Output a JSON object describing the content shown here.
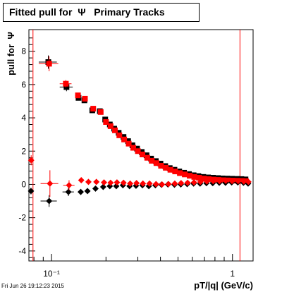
{
  "title": "Fitted pull for  Ψ   Primary Tracks",
  "timestamp": "Fri Jun 26 19:12:23 2015",
  "chart_data": {
    "type": "scatter",
    "xlabel": "pT/|q| (GeV/c)",
    "ylabel": "pull for  Ψ",
    "xscale": "log",
    "xlim": [
      0.075,
      1.3
    ],
    "ylim": [
      -4.6,
      9.3
    ],
    "yticks": [
      -4,
      -2,
      0,
      2,
      4,
      6,
      8
    ],
    "xtick_labels": [
      {
        "x": 0.1,
        "label": "10⁻¹"
      },
      {
        "x": 1,
        "label": "1"
      }
    ],
    "vertical_lines": [
      0.079,
      1.1
    ],
    "colors": {
      "black": "#000000",
      "red": "#ff0000",
      "lines": "#ff0000"
    },
    "series": [
      {
        "marker": "square",
        "color": "#000000",
        "points": [
          {
            "x": 0.096,
            "y": 7.35,
            "xerr": 0.011,
            "yerr": 0.4
          },
          {
            "x": 0.121,
            "y": 5.85,
            "xerr": 0.01,
            "yerr": 0.25
          },
          {
            "x": 0.141,
            "y": 5.2,
            "xerr": 0.005,
            "yerr": 0.12
          },
          {
            "x": 0.152,
            "y": 5.05,
            "xerr": 0.004,
            "yerr": 0.1
          },
          {
            "x": 0.168,
            "y": 4.45,
            "xerr": 0.004
          },
          {
            "x": 0.185,
            "y": 4.4
          },
          {
            "x": 0.198,
            "y": 3.9
          },
          {
            "x": 0.21,
            "y": 3.6
          },
          {
            "x": 0.222,
            "y": 3.35
          },
          {
            "x": 0.235,
            "y": 3.1
          },
          {
            "x": 0.25,
            "y": 2.85
          },
          {
            "x": 0.265,
            "y": 2.6
          },
          {
            "x": 0.28,
            "y": 2.35
          },
          {
            "x": 0.297,
            "y": 2.15
          },
          {
            "x": 0.315,
            "y": 1.95
          },
          {
            "x": 0.335,
            "y": 1.75
          },
          {
            "x": 0.355,
            "y": 1.55
          },
          {
            "x": 0.377,
            "y": 1.4
          },
          {
            "x": 0.4,
            "y": 1.25
          },
          {
            "x": 0.425,
            "y": 1.1
          },
          {
            "x": 0.45,
            "y": 0.98
          },
          {
            "x": 0.478,
            "y": 0.88
          },
          {
            "x": 0.508,
            "y": 0.78
          },
          {
            "x": 0.54,
            "y": 0.7
          },
          {
            "x": 0.575,
            "y": 0.62
          },
          {
            "x": 0.61,
            "y": 0.55
          },
          {
            "x": 0.648,
            "y": 0.5
          },
          {
            "x": 0.69,
            "y": 0.45
          },
          {
            "x": 0.733,
            "y": 0.42
          },
          {
            "x": 0.78,
            "y": 0.4
          },
          {
            "x": 0.83,
            "y": 0.38
          },
          {
            "x": 0.88,
            "y": 0.36
          },
          {
            "x": 0.935,
            "y": 0.35
          },
          {
            "x": 0.995,
            "y": 0.34
          },
          {
            "x": 1.06,
            "y": 0.33
          },
          {
            "x": 1.12,
            "y": 0.32
          },
          {
            "x": 1.18,
            "y": 0.3
          }
        ]
      },
      {
        "marker": "square",
        "color": "#ff0000",
        "points": [
          {
            "x": 0.097,
            "y": 7.25,
            "xerr": 0.012,
            "yerr": 0.45
          },
          {
            "x": 0.12,
            "y": 6.05,
            "xerr": 0.009,
            "yerr": 0.22
          },
          {
            "x": 0.14,
            "y": 5.35,
            "xerr": 0.005,
            "yerr": 0.12
          },
          {
            "x": 0.153,
            "y": 5.15,
            "xerr": 0.004,
            "yerr": 0.1
          },
          {
            "x": 0.17,
            "y": 4.55,
            "xerr": 0.004
          },
          {
            "x": 0.187,
            "y": 4.35
          },
          {
            "x": 0.2,
            "y": 3.75
          },
          {
            "x": 0.212,
            "y": 3.5
          },
          {
            "x": 0.224,
            "y": 3.25
          },
          {
            "x": 0.237,
            "y": 2.95
          },
          {
            "x": 0.252,
            "y": 2.7
          },
          {
            "x": 0.267,
            "y": 2.45
          },
          {
            "x": 0.283,
            "y": 2.2
          },
          {
            "x": 0.3,
            "y": 2.0
          },
          {
            "x": 0.318,
            "y": 1.8
          },
          {
            "x": 0.338,
            "y": 1.6
          },
          {
            "x": 0.358,
            "y": 1.42
          },
          {
            "x": 0.38,
            "y": 1.28
          },
          {
            "x": 0.403,
            "y": 1.12
          },
          {
            "x": 0.428,
            "y": 1.0
          },
          {
            "x": 0.454,
            "y": 0.88
          },
          {
            "x": 0.482,
            "y": 0.78
          },
          {
            "x": 0.512,
            "y": 0.68
          },
          {
            "x": 0.545,
            "y": 0.6
          },
          {
            "x": 0.58,
            "y": 0.52
          },
          {
            "x": 0.615,
            "y": 0.45
          },
          {
            "x": 0.653,
            "y": 0.4
          },
          {
            "x": 0.695,
            "y": 0.35
          },
          {
            "x": 0.738,
            "y": 0.32
          },
          {
            "x": 0.785,
            "y": 0.29
          },
          {
            "x": 0.835,
            "y": 0.27
          },
          {
            "x": 0.886,
            "y": 0.25
          },
          {
            "x": 0.94,
            "y": 0.24
          },
          {
            "x": 1.0,
            "y": 0.23
          },
          {
            "x": 1.065,
            "y": 0.22
          },
          {
            "x": 1.125,
            "y": 0.21
          },
          {
            "x": 1.185,
            "y": 0.2
          }
        ]
      },
      {
        "marker": "diamond",
        "color": "#000000",
        "points": [
          {
            "x": 0.077,
            "y": -0.4,
            "xerr": 0.002,
            "yerr": 0.2
          },
          {
            "x": 0.097,
            "y": -1.0,
            "xerr": 0.01,
            "yerr": 0.35
          },
          {
            "x": 0.124,
            "y": -0.45,
            "xerr": 0.009,
            "yerr": 0.25
          },
          {
            "x": 0.145,
            "y": -0.45,
            "xerr": 0.005
          },
          {
            "x": 0.158,
            "y": -0.4
          },
          {
            "x": 0.175,
            "y": -0.25
          },
          {
            "x": 0.193,
            "y": -0.15
          },
          {
            "x": 0.21,
            "y": -0.1
          },
          {
            "x": 0.228,
            "y": -0.1
          },
          {
            "x": 0.248,
            "y": -0.05
          },
          {
            "x": 0.27,
            "y": -0.1
          },
          {
            "x": 0.293,
            "y": -0.08
          },
          {
            "x": 0.318,
            "y": -0.05
          },
          {
            "x": 0.345,
            "y": -0.1
          },
          {
            "x": 0.375,
            "y": -0.05
          },
          {
            "x": 0.405,
            "y": -0.02
          },
          {
            "x": 0.44,
            "y": 0.0
          },
          {
            "x": 0.478,
            "y": -0.02
          },
          {
            "x": 0.518,
            "y": 0.0
          },
          {
            "x": 0.562,
            "y": 0.02
          },
          {
            "x": 0.61,
            "y": 0.05
          },
          {
            "x": 0.662,
            "y": 0.05
          },
          {
            "x": 0.718,
            "y": 0.08
          },
          {
            "x": 0.778,
            "y": 0.08
          },
          {
            "x": 0.845,
            "y": 0.1
          },
          {
            "x": 0.915,
            "y": 0.1
          },
          {
            "x": 0.99,
            "y": 0.12
          },
          {
            "x": 1.07,
            "y": 0.12
          },
          {
            "x": 1.15,
            "y": 0.1
          },
          {
            "x": 1.22,
            "y": 0.05
          }
        ]
      },
      {
        "marker": "diamond",
        "color": "#ff0000",
        "points": [
          {
            "x": 0.0772,
            "y": 1.45,
            "xerr": 0.002,
            "yerr": 0.3
          },
          {
            "x": 0.098,
            "y": 0.05,
            "xerr": 0.011,
            "yerr": 0.8
          },
          {
            "x": 0.125,
            "y": -0.05,
            "xerr": 0.009,
            "yerr": 0.3
          },
          {
            "x": 0.146,
            "y": 0.25,
            "xerr": 0.005
          },
          {
            "x": 0.16,
            "y": 0.15
          },
          {
            "x": 0.177,
            "y": 0.15
          },
          {
            "x": 0.195,
            "y": 0.12
          },
          {
            "x": 0.212,
            "y": 0.1
          },
          {
            "x": 0.23,
            "y": 0.12
          },
          {
            "x": 0.25,
            "y": 0.1
          },
          {
            "x": 0.272,
            "y": 0.05
          },
          {
            "x": 0.295,
            "y": 0.08
          },
          {
            "x": 0.32,
            "y": 0.05
          },
          {
            "x": 0.348,
            "y": 0.05
          },
          {
            "x": 0.378,
            "y": 0.02
          },
          {
            "x": 0.408,
            "y": 0.0
          },
          {
            "x": 0.443,
            "y": 0.02
          },
          {
            "x": 0.48,
            "y": 0.05
          },
          {
            "x": 0.52,
            "y": 0.08
          },
          {
            "x": 0.565,
            "y": 0.1
          },
          {
            "x": 0.613,
            "y": 0.12
          },
          {
            "x": 0.665,
            "y": 0.15
          },
          {
            "x": 0.722,
            "y": 0.18
          },
          {
            "x": 0.782,
            "y": 0.2
          },
          {
            "x": 0.848,
            "y": 0.2
          },
          {
            "x": 0.918,
            "y": 0.22
          },
          {
            "x": 0.995,
            "y": 0.2
          },
          {
            "x": 1.075,
            "y": 0.2
          },
          {
            "x": 1.155,
            "y": 0.18
          },
          {
            "x": 1.225,
            "y": 0.15
          }
        ]
      }
    ]
  }
}
